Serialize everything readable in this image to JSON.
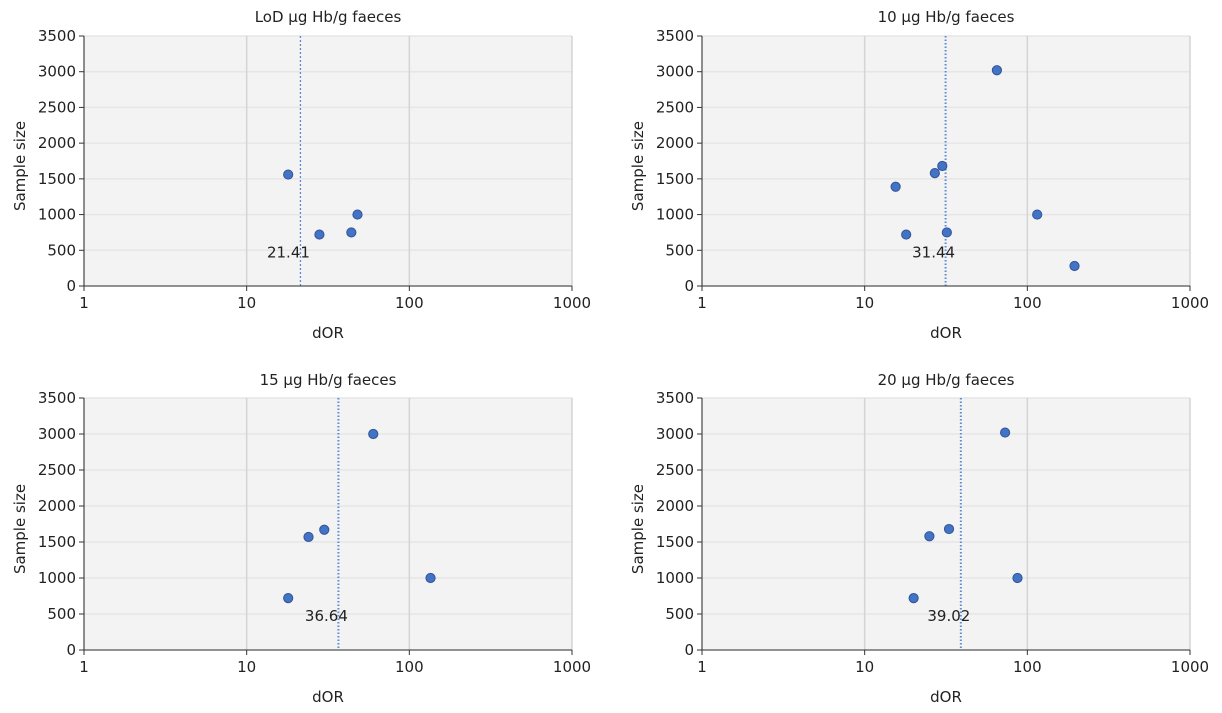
{
  "chart_data": [
    {
      "type": "scatter",
      "title": "LoD µg Hb/g faeces",
      "xlabel": "dOR",
      "ylabel": "Sample size",
      "xscale": "log",
      "xlim": [
        1,
        1000
      ],
      "ylim": [
        0,
        3500
      ],
      "xticks": [
        "1",
        "10",
        "100",
        "1000"
      ],
      "yticks": [
        "0",
        "500",
        "1000",
        "1500",
        "2000",
        "2500",
        "3000",
        "3500"
      ],
      "grid": true,
      "reference_line": {
        "x": 21.41,
        "label": "21.41",
        "style": "dashed"
      },
      "points": [
        {
          "x": 18,
          "y": 1560
        },
        {
          "x": 28,
          "y": 720
        },
        {
          "x": 44,
          "y": 750
        },
        {
          "x": 48,
          "y": 1000
        }
      ]
    },
    {
      "type": "scatter",
      "title": "10 µg Hb/g faeces",
      "xlabel": "dOR",
      "ylabel": "Sample size",
      "xscale": "log",
      "xlim": [
        1,
        1000
      ],
      "ylim": [
        0,
        3500
      ],
      "xticks": [
        "1",
        "10",
        "100",
        "1000"
      ],
      "yticks": [
        "0",
        "500",
        "1000",
        "1500",
        "2000",
        "2500",
        "3000",
        "3500"
      ],
      "grid": true,
      "reference_line": {
        "x": 31.44,
        "label": "31.44",
        "style": "dotted"
      },
      "points": [
        {
          "x": 15.5,
          "y": 1390
        },
        {
          "x": 18,
          "y": 720
        },
        {
          "x": 27,
          "y": 1580
        },
        {
          "x": 30,
          "y": 1680
        },
        {
          "x": 32,
          "y": 750
        },
        {
          "x": 65,
          "y": 3020
        },
        {
          "x": 115,
          "y": 1000
        },
        {
          "x": 195,
          "y": 280
        }
      ]
    },
    {
      "type": "scatter",
      "title": "15 µg Hb/g faeces",
      "xlabel": "dOR",
      "ylabel": "Sample size",
      "xscale": "log",
      "xlim": [
        1,
        1000
      ],
      "ylim": [
        0,
        3500
      ],
      "xticks": [
        "1",
        "10",
        "100",
        "1000"
      ],
      "yticks": [
        "0",
        "500",
        "1000",
        "1500",
        "2000",
        "2500",
        "3000",
        "3500"
      ],
      "grid": true,
      "reference_line": {
        "x": 36.64,
        "label": "36.64",
        "style": "dotted"
      },
      "points": [
        {
          "x": 18,
          "y": 720
        },
        {
          "x": 24,
          "y": 1570
        },
        {
          "x": 30,
          "y": 1670
        },
        {
          "x": 60,
          "y": 3000
        },
        {
          "x": 135,
          "y": 1000
        }
      ]
    },
    {
      "type": "scatter",
      "title": "20 µg Hb/g faeces",
      "xlabel": "dOR",
      "ylabel": "Sample size",
      "xscale": "log",
      "xlim": [
        1,
        1000
      ],
      "ylim": [
        0,
        3500
      ],
      "xticks": [
        "1",
        "10",
        "100",
        "1000"
      ],
      "yticks": [
        "0",
        "500",
        "1000",
        "1500",
        "2000",
        "2500",
        "3000",
        "3500"
      ],
      "grid": true,
      "reference_line": {
        "x": 39.02,
        "label": "39.02",
        "style": "dotted"
      },
      "points": [
        {
          "x": 20,
          "y": 720
        },
        {
          "x": 25,
          "y": 1580
        },
        {
          "x": 33,
          "y": 1680
        },
        {
          "x": 73,
          "y": 3020
        },
        {
          "x": 87,
          "y": 1000
        }
      ]
    }
  ],
  "colors": {
    "point": "#4472C4",
    "point_edge": "#2F5597",
    "ref_line": "#5B8BD6",
    "plot_bg": "#F3F3F3",
    "grid_major": "#D4D4D4",
    "grid_minor": "#E6E6E6",
    "axis": "#333333"
  }
}
